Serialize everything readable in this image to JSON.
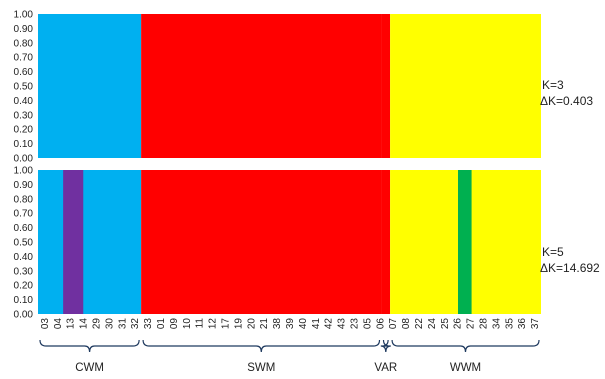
{
  "chart_data": [
    {
      "type": "bar",
      "subtype": "stacked-100",
      "panel": "upper",
      "k_label": "K=3",
      "dk_label": "ΔK=0.403",
      "ylim": [
        0,
        1
      ],
      "yticks": [
        "0.00",
        "0.10",
        "0.20",
        "0.30",
        "0.40",
        "0.50",
        "0.60",
        "0.70",
        "0.80",
        "0.90",
        "1.00"
      ],
      "colors": [
        "#00b0f0",
        "#ff0000",
        "#ffff00"
      ],
      "segments": [
        {
          "group": "CWM",
          "from": 0.0,
          "to": 0.205,
          "dominant": "#00b0f0"
        },
        {
          "group": "SWM",
          "from": 0.205,
          "to": 0.683,
          "dominant": "#ff0000"
        },
        {
          "group": "VAR",
          "from": 0.683,
          "to": 0.7,
          "dominant": "#ff0000"
        },
        {
          "group": "WWM",
          "from": 0.7,
          "to": 1.0,
          "dominant": "#ffff00"
        }
      ]
    },
    {
      "type": "bar",
      "subtype": "stacked-100",
      "panel": "lower",
      "k_label": "K=5",
      "dk_label": "ΔK=14.692",
      "ylim": [
        0,
        1
      ],
      "yticks": [
        "0.00",
        "0.10",
        "0.20",
        "0.30",
        "0.40",
        "0.50",
        "0.60",
        "0.70",
        "0.80",
        "0.90",
        "1.00"
      ],
      "colors": [
        "#00b0f0",
        "#7030a0",
        "#ff0000",
        "#ffff00",
        "#00b050"
      ],
      "segments": [
        {
          "group": "CWM",
          "from": 0.0,
          "to": 0.205,
          "dominant": "#00b0f0",
          "inset": {
            "from": 0.05,
            "to": 0.09,
            "color": "#7030a0"
          }
        },
        {
          "group": "SWM",
          "from": 0.205,
          "to": 0.683,
          "dominant": "#ff0000"
        },
        {
          "group": "VAR",
          "from": 0.683,
          "to": 0.7,
          "dominant": "#ff0000"
        },
        {
          "group": "WWM",
          "from": 0.7,
          "to": 1.0,
          "dominant": "#ffff00",
          "inset": {
            "from": 0.835,
            "to": 0.862,
            "color": "#00b050"
          }
        }
      ]
    }
  ],
  "x_tick_labels": [
    "03",
    "04",
    "13",
    "14",
    "29",
    "30",
    "31",
    "32",
    "33",
    "01",
    "09",
    "10",
    "11",
    "12",
    "17",
    "19",
    "20",
    "21",
    "38",
    "39",
    "40",
    "41",
    "42",
    "43",
    "23",
    "05",
    "06",
    "07",
    "08",
    "22",
    "24",
    "25",
    "26",
    "27",
    "28",
    "34",
    "35",
    "36",
    "37"
  ],
  "groups": [
    {
      "name": "CWM"
    },
    {
      "name": "SWM"
    },
    {
      "name": "VAR"
    },
    {
      "name": "WWM"
    }
  ]
}
